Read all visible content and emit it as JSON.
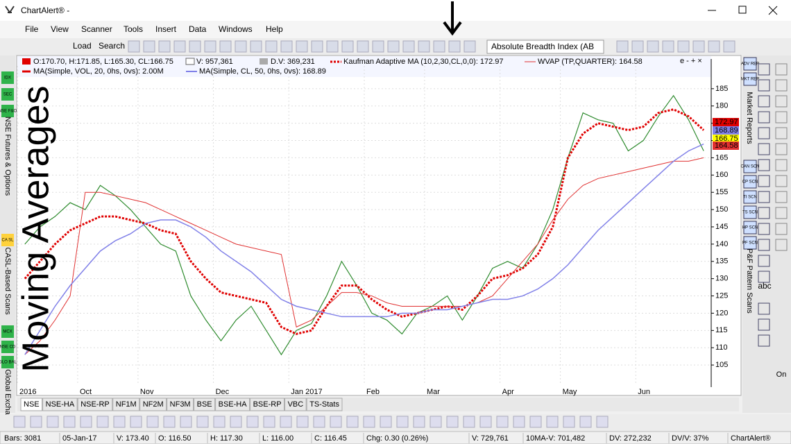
{
  "window": {
    "title": "ChartAlert® -"
  },
  "menu": [
    "File",
    "View",
    "Scanner",
    "Tools",
    "Insert",
    "Data",
    "Windows",
    "Help"
  ],
  "toolbar": {
    "load": "Load",
    "search": "Search",
    "indicator_dropdown": "Absolute Breadth Index (AB"
  },
  "overlay_title": "Moving Averages",
  "legend": {
    "ohlc": "O:170.70, H:171.85, L:165.30, CL:166.75",
    "volume": "V: 957,361",
    "dv": "D.V: 369,231",
    "kama": "Kaufman Adaptive MA (10,2,30,CL,0,0): 172.97",
    "wvap": "WVAP (TP,QUARTER): 164.58",
    "ma_vol": "MA(Simple, VOL, 20, 0hs, 0vs): 2.00M",
    "ma_cl": "MA(Simple, CL, 50, 0hs, 0vs): 168.89",
    "controls": "e - + ×"
  },
  "chart_data": {
    "type": "line",
    "categories": [
      "2016",
      null,
      null,
      null,
      "Oct",
      null,
      null,
      null,
      "Nov",
      null,
      null,
      null,
      null,
      "Dec",
      null,
      null,
      null,
      null,
      "Jan 2017",
      null,
      null,
      null,
      null,
      "Feb",
      null,
      null,
      null,
      "Mar",
      null,
      null,
      null,
      null,
      "Apr",
      null,
      null,
      null,
      "May",
      null,
      null,
      null,
      null,
      "Jun",
      null,
      null,
      null,
      null
    ],
    "series": [
      {
        "name": "Close",
        "color": "#2e8b2e",
        "values": [
          140,
          145,
          148,
          152,
          150,
          157,
          154,
          150,
          145,
          140,
          138,
          125,
          118,
          112,
          118,
          122,
          115,
          108,
          115,
          117,
          125,
          135,
          128,
          120,
          118,
          114,
          120,
          122,
          125,
          118,
          125,
          133,
          135,
          133,
          140,
          150,
          165,
          178,
          176,
          175,
          167,
          170,
          177,
          183,
          176,
          167
        ]
      },
      {
        "name": "Kaufman Adaptive MA",
        "color": "#e00000",
        "values": [
          130,
          135,
          140,
          144,
          146,
          148,
          148,
          147,
          146,
          144,
          143,
          135,
          130,
          126,
          125,
          124,
          123,
          116,
          114,
          115,
          122,
          128,
          128,
          124,
          121,
          119,
          120,
          121,
          122,
          121,
          125,
          130,
          131,
          133,
          137,
          145,
          165,
          172,
          175,
          174,
          173,
          174,
          178,
          179,
          177,
          173
        ]
      },
      {
        "name": "WVAP",
        "color": "#e03030",
        "values": [
          108,
          112,
          118,
          125,
          155,
          155,
          154,
          153,
          152,
          150,
          148,
          146,
          144,
          142,
          140,
          139,
          138,
          137,
          116,
          118,
          122,
          126,
          126,
          125,
          123,
          122,
          122,
          122,
          122,
          122,
          123,
          125,
          130,
          135,
          140,
          147,
          153,
          157,
          159,
          160,
          161,
          162,
          163,
          164,
          164,
          165
        ]
      },
      {
        "name": "MA 50",
        "color": "#8080e8",
        "values": [
          108,
          115,
          122,
          128,
          133,
          138,
          141,
          143,
          146,
          147,
          147,
          145,
          142,
          138,
          135,
          132,
          128,
          124,
          122,
          121,
          120,
          119,
          119,
          119,
          119,
          120,
          120,
          121,
          121,
          122,
          123,
          124,
          124,
          125,
          127,
          130,
          134,
          139,
          144,
          148,
          152,
          156,
          160,
          164,
          167,
          169
        ]
      }
    ],
    "ylim": [
      99.2,
      191.6
    ],
    "yticks": [
      105,
      110,
      115,
      120,
      125,
      130,
      135,
      140,
      145,
      150,
      155,
      160,
      165,
      170,
      175,
      180,
      185
    ],
    "grid": true,
    "last_labels": [
      {
        "label": "172.97",
        "color": "#e00000"
      },
      {
        "label": "168.89",
        "color": "#8080e8"
      },
      {
        "label": "166.75",
        "color": "#ffff00"
      },
      {
        "label": "164.58",
        "color": "#e03030"
      }
    ]
  },
  "tabs": [
    "NSE",
    "NSE-HA",
    "NSE-RP",
    "NF1M",
    "NF2M",
    "NF3M",
    "BSE",
    "BSE-HA",
    "BSE-RP",
    "VBC",
    "TS-Stats"
  ],
  "left_sidebar": {
    "buttons": [
      "IDX",
      "SEC",
      "NSE F&O",
      "CA SL",
      "MCX",
      "NSE CD",
      "GLO BAL"
    ],
    "labels": [
      "NSE Futures & Options",
      "CASL-Based Scans",
      "Global Excha"
    ]
  },
  "right_sidebar": {
    "buttons": [
      "ADV REP",
      "MKT REP",
      "CAN SCN",
      "CP SCN",
      "TI SCN",
      "TS SCN",
      "HP SCN",
      "PF SCN"
    ],
    "labels": [
      "Market Reports",
      "P&F Pattern Scans"
    ],
    "tools": [
      "abc",
      "On"
    ]
  },
  "status_bar": [
    "Bars: 3081",
    "05-Jan-17",
    "V: 173.40",
    "O: 116.50",
    "H: 117.30",
    "L: 116.00",
    "C: 116.45",
    "Chg: 0.30 (0.26%)",
    "V: 729,761",
    "10MA-V: 701,482",
    "DV: 272,232",
    "DV/V: 37%",
    "ChartAlert®"
  ]
}
